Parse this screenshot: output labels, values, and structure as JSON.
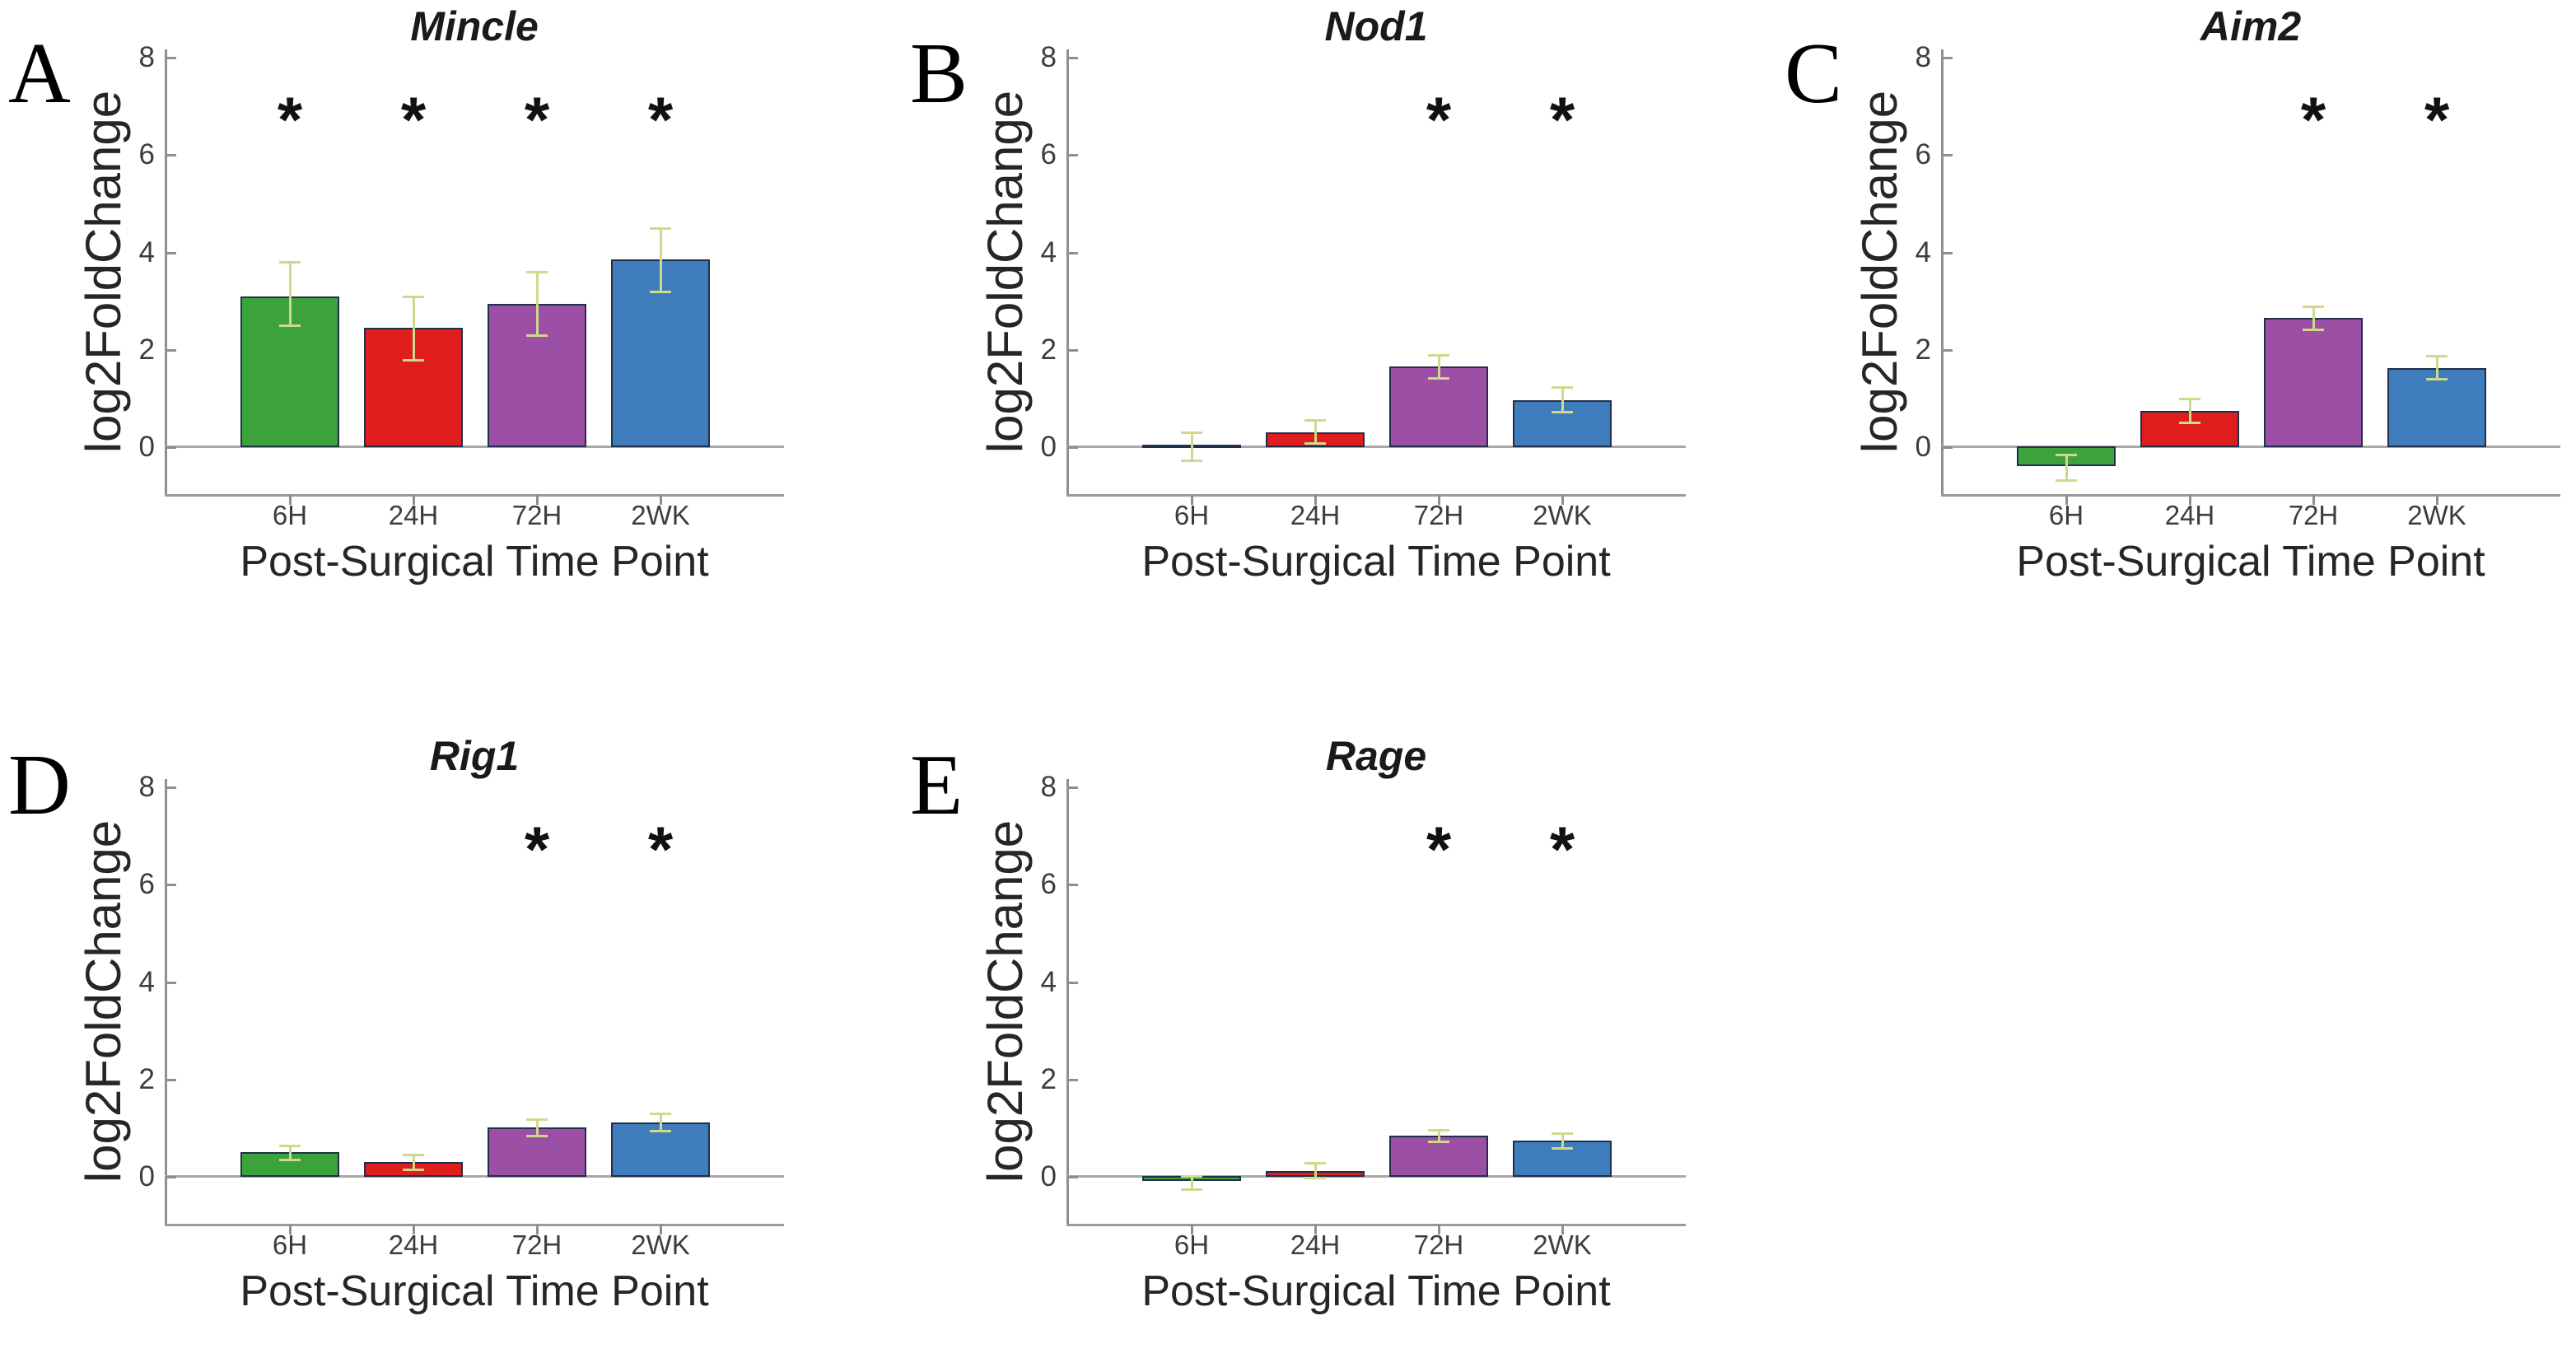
{
  "figure": {
    "background": "#ffffff",
    "significance_marker": "*",
    "colors": {
      "bar_fill": [
        "#3CA23C",
        "#DF1D1D",
        "#9B4FA5",
        "#3E7CBB"
      ],
      "bar_edge": "#20304A",
      "error_bar": "#CFD98C",
      "zero_line": "#A8A8A8",
      "axis_line": "#8F8F8F",
      "text": "#1A1A1A"
    }
  },
  "chart_data": [
    {
      "type": "bar",
      "panel": "A",
      "title": "Mincle",
      "categories": [
        "6H",
        "24H",
        "72H",
        "2WK"
      ],
      "values": [
        3.1,
        2.45,
        2.95,
        3.85
      ],
      "error_low": [
        2.5,
        1.8,
        2.3,
        3.2
      ],
      "error_high": [
        3.8,
        3.1,
        3.6,
        4.5
      ],
      "significant": [
        true,
        true,
        true,
        true
      ],
      "xlabel": "Post-Surgical Time Point",
      "ylabel": "log2FoldChange",
      "ylim": [
        -1,
        8
      ],
      "yticks": [
        0,
        2,
        4,
        6,
        8
      ],
      "legend": "none",
      "grid": "off"
    },
    {
      "type": "bar",
      "panel": "B",
      "title": "Nod1",
      "categories": [
        "6H",
        "24H",
        "72H",
        "2WK"
      ],
      "values": [
        0.05,
        0.3,
        1.65,
        0.97
      ],
      "error_low": [
        -0.27,
        0.08,
        1.42,
        0.72
      ],
      "error_high": [
        0.3,
        0.55,
        1.9,
        1.23
      ],
      "significant": [
        false,
        false,
        true,
        true
      ],
      "xlabel": "Post-Surgical Time Point",
      "ylabel": "log2FoldChange",
      "ylim": [
        -1,
        8
      ],
      "yticks": [
        0,
        2,
        4,
        6,
        8
      ],
      "legend": "none",
      "grid": "off"
    },
    {
      "type": "bar",
      "panel": "C",
      "title": "Aim2",
      "categories": [
        "6H",
        "24H",
        "72H",
        "2WK"
      ],
      "values": [
        -0.4,
        0.75,
        2.65,
        1.62
      ],
      "error_low": [
        -0.68,
        0.5,
        2.42,
        1.4
      ],
      "error_high": [
        -0.15,
        1.0,
        2.9,
        1.88
      ],
      "significant": [
        false,
        false,
        true,
        true
      ],
      "xlabel": "Post-Surgical Time Point",
      "ylabel": "log2FoldChange",
      "ylim": [
        -1,
        8
      ],
      "yticks": [
        0,
        2,
        4,
        6,
        8
      ],
      "legend": "none",
      "grid": "off"
    },
    {
      "type": "bar",
      "panel": "D",
      "title": "Rig1",
      "categories": [
        "6H",
        "24H",
        "72H",
        "2WK"
      ],
      "values": [
        0.5,
        0.3,
        1.02,
        1.12
      ],
      "error_low": [
        0.35,
        0.15,
        0.85,
        0.95
      ],
      "error_high": [
        0.65,
        0.45,
        1.18,
        1.3
      ],
      "significant": [
        false,
        false,
        true,
        true
      ],
      "xlabel": "Post-Surgical Time Point",
      "ylabel": "log2FoldChange",
      "ylim": [
        -1,
        8
      ],
      "yticks": [
        0,
        2,
        4,
        6,
        8
      ],
      "legend": "none",
      "grid": "off"
    },
    {
      "type": "bar",
      "panel": "E",
      "title": "Rage",
      "categories": [
        "6H",
        "24H",
        "72H",
        "2WK"
      ],
      "values": [
        -0.1,
        0.12,
        0.85,
        0.75
      ],
      "error_low": [
        -0.25,
        -0.02,
        0.72,
        0.6
      ],
      "error_high": [
        0.02,
        0.28,
        0.97,
        0.9
      ],
      "significant": [
        false,
        false,
        true,
        true
      ],
      "xlabel": "Post-Surgical Time Point",
      "ylabel": "log2FoldChange",
      "ylim": [
        -1,
        8
      ],
      "yticks": [
        0,
        2,
        4,
        6,
        8
      ],
      "legend": "none",
      "grid": "off"
    }
  ]
}
